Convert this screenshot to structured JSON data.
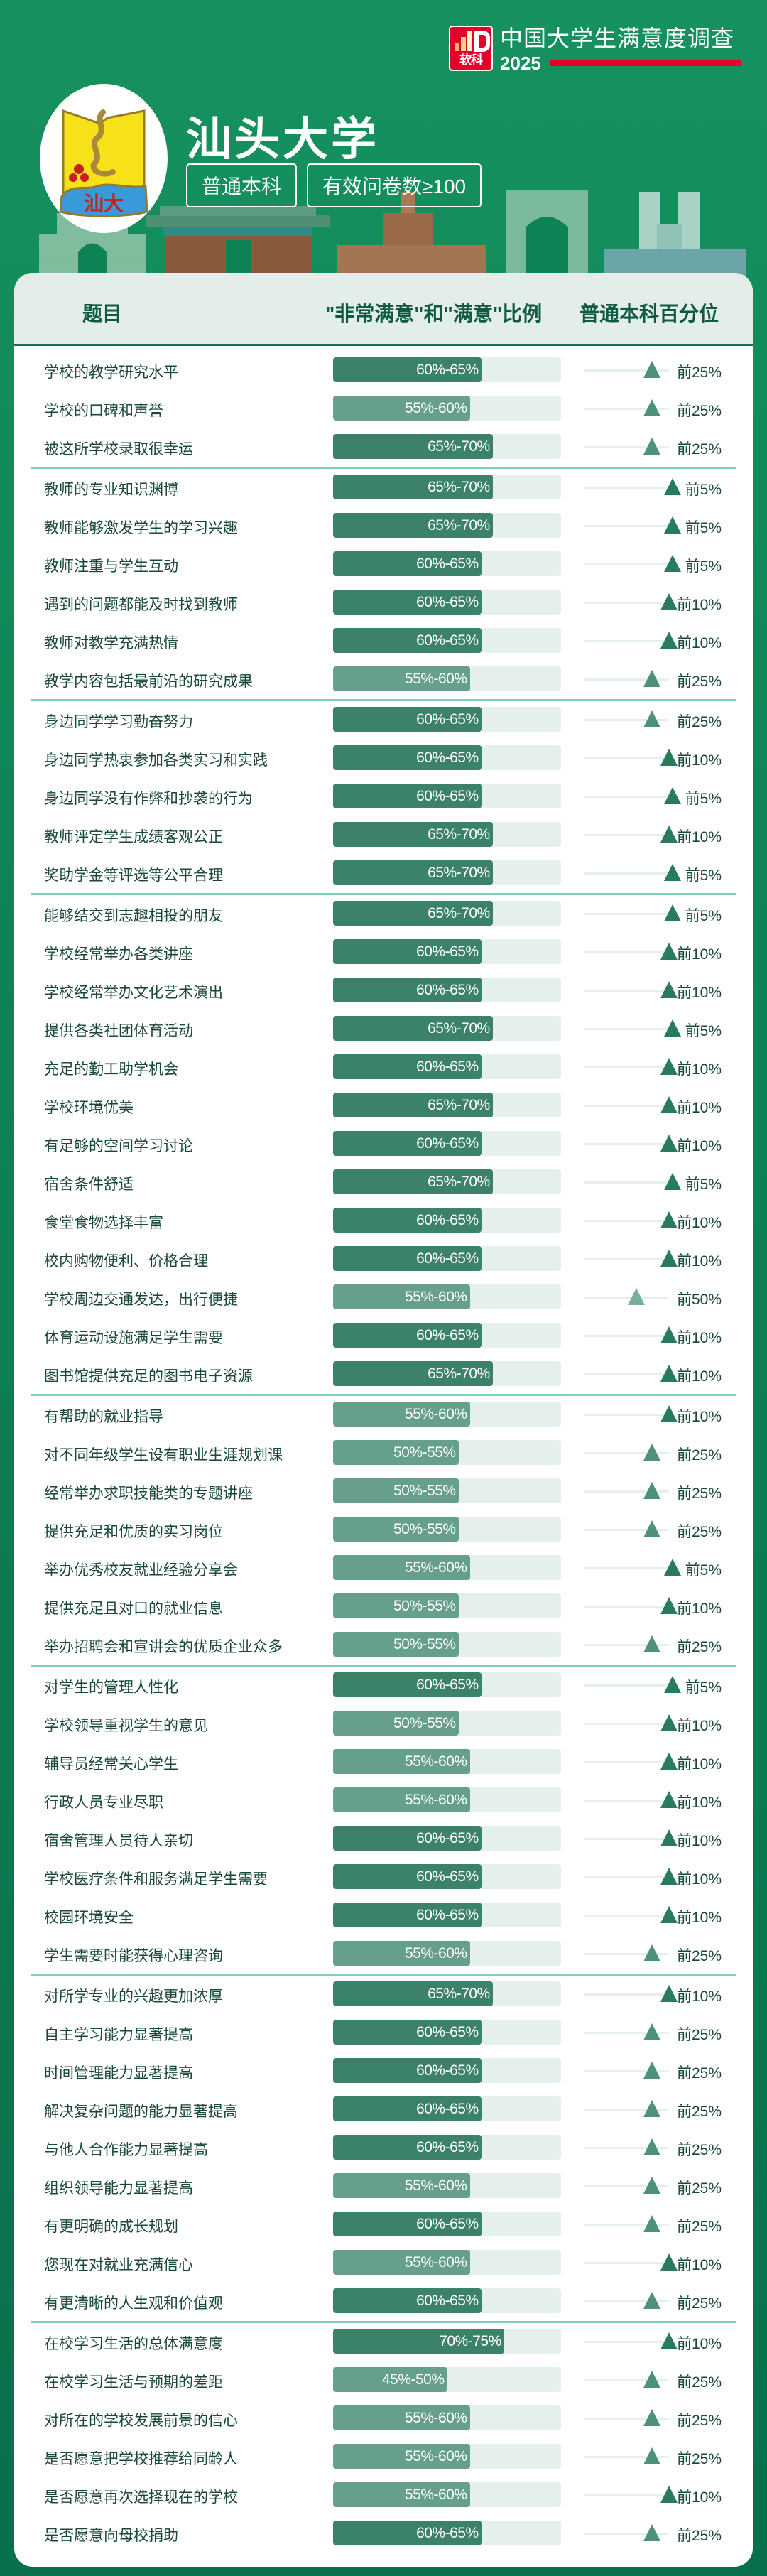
{
  "brand": {
    "badge_text": "软科",
    "title": "中国大学生满意度调查",
    "year": "2025",
    "accent_color": "#e3002a"
  },
  "school": {
    "name": "汕头大学",
    "logo_text": "汕大",
    "tags": [
      "普通本科",
      "有效问卷数≥100"
    ]
  },
  "table": {
    "headers": {
      "topic": "题目",
      "ratio": "\"非常满意\"和\"满意\"比例",
      "percentile": "普通本科百分位"
    },
    "colors": {
      "bar_high": "#3b8268",
      "bar_low": "#66a08a",
      "track": "#e5efeb",
      "divider": "#7fcdbf"
    },
    "sections": [
      {
        "rows": [
          {
            "label": "学校的教学研究水平",
            "ratio": "60%-65%",
            "percentile": "前25%"
          },
          {
            "label": "学校的口碑和声誉",
            "ratio": "55%-60%",
            "percentile": "前25%"
          },
          {
            "label": "被这所学校录取很幸运",
            "ratio": "65%-70%",
            "percentile": "前25%"
          }
        ]
      },
      {
        "rows": [
          {
            "label": "教师的专业知识渊博",
            "ratio": "65%-70%",
            "percentile": "前5%"
          },
          {
            "label": "教师能够激发学生的学习兴趣",
            "ratio": "65%-70%",
            "percentile": "前5%"
          },
          {
            "label": "教师注重与学生互动",
            "ratio": "60%-65%",
            "percentile": "前5%"
          },
          {
            "label": "遇到的问题都能及时找到教师",
            "ratio": "60%-65%",
            "percentile": "前10%"
          },
          {
            "label": "教师对教学充满热情",
            "ratio": "60%-65%",
            "percentile": "前10%"
          },
          {
            "label": "教学内容包括最前沿的研究成果",
            "ratio": "55%-60%",
            "percentile": "前25%"
          }
        ]
      },
      {
        "rows": [
          {
            "label": "身边同学学习勤奋努力",
            "ratio": "60%-65%",
            "percentile": "前25%"
          },
          {
            "label": "身边同学热衷参加各类实习和实践",
            "ratio": "60%-65%",
            "percentile": "前10%"
          },
          {
            "label": "身边同学没有作弊和抄袭的行为",
            "ratio": "60%-65%",
            "percentile": "前5%"
          },
          {
            "label": "教师评定学生成绩客观公正",
            "ratio": "65%-70%",
            "percentile": "前10%"
          },
          {
            "label": "奖助学金等评选等公平合理",
            "ratio": "65%-70%",
            "percentile": "前5%"
          }
        ]
      },
      {
        "rows": [
          {
            "label": "能够结交到志趣相投的朋友",
            "ratio": "65%-70%",
            "percentile": "前5%"
          },
          {
            "label": "学校经常举办各类讲座",
            "ratio": "60%-65%",
            "percentile": "前10%"
          },
          {
            "label": "学校经常举办文化艺术演出",
            "ratio": "60%-65%",
            "percentile": "前10%"
          },
          {
            "label": "提供各类社团体育活动",
            "ratio": "65%-70%",
            "percentile": "前5%"
          },
          {
            "label": "充足的勤工助学机会",
            "ratio": "60%-65%",
            "percentile": "前10%"
          },
          {
            "label": "学校环境优美",
            "ratio": "65%-70%",
            "percentile": "前10%"
          },
          {
            "label": "有足够的空间学习讨论",
            "ratio": "60%-65%",
            "percentile": "前10%"
          },
          {
            "label": "宿舍条件舒适",
            "ratio": "65%-70%",
            "percentile": "前5%"
          },
          {
            "label": "食堂食物选择丰富",
            "ratio": "60%-65%",
            "percentile": "前10%"
          },
          {
            "label": "校内购物便利、价格合理",
            "ratio": "60%-65%",
            "percentile": "前10%"
          },
          {
            "label": "学校周边交通发达，出行便捷",
            "ratio": "55%-60%",
            "percentile": "前50%"
          },
          {
            "label": "体育运动设施满足学生需要",
            "ratio": "60%-65%",
            "percentile": "前10%"
          },
          {
            "label": "图书馆提供充足的图书电子资源",
            "ratio": "65%-70%",
            "percentile": "前10%"
          }
        ]
      },
      {
        "rows": [
          {
            "label": "有帮助的就业指导",
            "ratio": "55%-60%",
            "percentile": "前10%"
          },
          {
            "label": "对不同年级学生设有职业生涯规划课",
            "ratio": "50%-55%",
            "percentile": "前25%"
          },
          {
            "label": "经常举办求职技能类的专题讲座",
            "ratio": "50%-55%",
            "percentile": "前25%"
          },
          {
            "label": "提供充足和优质的实习岗位",
            "ratio": "50%-55%",
            "percentile": "前25%"
          },
          {
            "label": "举办优秀校友就业经验分享会",
            "ratio": "55%-60%",
            "percentile": "前5%"
          },
          {
            "label": "提供充足且对口的就业信息",
            "ratio": "50%-55%",
            "percentile": "前10%"
          },
          {
            "label": "举办招聘会和宣讲会的优质企业众多",
            "ratio": "50%-55%",
            "percentile": "前25%"
          }
        ]
      },
      {
        "rows": [
          {
            "label": "对学生的管理人性化",
            "ratio": "60%-65%",
            "percentile": "前5%"
          },
          {
            "label": "学校领导重视学生的意见",
            "ratio": "50%-55%",
            "percentile": "前10%"
          },
          {
            "label": "辅导员经常关心学生",
            "ratio": "55%-60%",
            "percentile": "前10%"
          },
          {
            "label": "行政人员专业尽职",
            "ratio": "55%-60%",
            "percentile": "前10%"
          },
          {
            "label": "宿舍管理人员待人亲切",
            "ratio": "60%-65%",
            "percentile": "前10%"
          },
          {
            "label": "学校医疗条件和服务满足学生需要",
            "ratio": "60%-65%",
            "percentile": "前10%"
          },
          {
            "label": "校园环境安全",
            "ratio": "60%-65%",
            "percentile": "前10%"
          },
          {
            "label": "学生需要时能获得心理咨询",
            "ratio": "55%-60%",
            "percentile": "前25%"
          }
        ]
      },
      {
        "rows": [
          {
            "label": "对所学专业的兴趣更加浓厚",
            "ratio": "65%-70%",
            "percentile": "前10%"
          },
          {
            "label": "自主学习能力显著提高",
            "ratio": "60%-65%",
            "percentile": "前25%"
          },
          {
            "label": "时间管理能力显著提高",
            "ratio": "60%-65%",
            "percentile": "前25%"
          },
          {
            "label": "解决复杂问题的能力显著提高",
            "ratio": "60%-65%",
            "percentile": "前25%"
          },
          {
            "label": "与他人合作能力显著提高",
            "ratio": "60%-65%",
            "percentile": "前25%"
          },
          {
            "label": "组织领导能力显著提高",
            "ratio": "55%-60%",
            "percentile": "前25%"
          },
          {
            "label": "有更明确的成长规划",
            "ratio": "60%-65%",
            "percentile": "前25%"
          },
          {
            "label": "您现在对就业充满信心",
            "ratio": "55%-60%",
            "percentile": "前10%"
          },
          {
            "label": "有更清晰的人生观和价值观",
            "ratio": "60%-65%",
            "percentile": "前25%"
          }
        ]
      },
      {
        "rows": [
          {
            "label": "在校学习生活的总体满意度",
            "ratio": "70%-75%",
            "percentile": "前10%"
          },
          {
            "label": "在校学习生活与预期的差距",
            "ratio": "45%-50%",
            "percentile": "前25%"
          },
          {
            "label": "对所在的学校发展前景的信心",
            "ratio": "55%-60%",
            "percentile": "前25%"
          },
          {
            "label": "是否愿意把学校推荐给同龄人",
            "ratio": "55%-60%",
            "percentile": "前25%"
          },
          {
            "label": "是否愿意再次选择现在的学校",
            "ratio": "55%-60%",
            "percentile": "前10%"
          },
          {
            "label": "是否愿意向母校捐助",
            "ratio": "60%-65%",
            "percentile": "前25%"
          }
        ]
      }
    ]
  }
}
